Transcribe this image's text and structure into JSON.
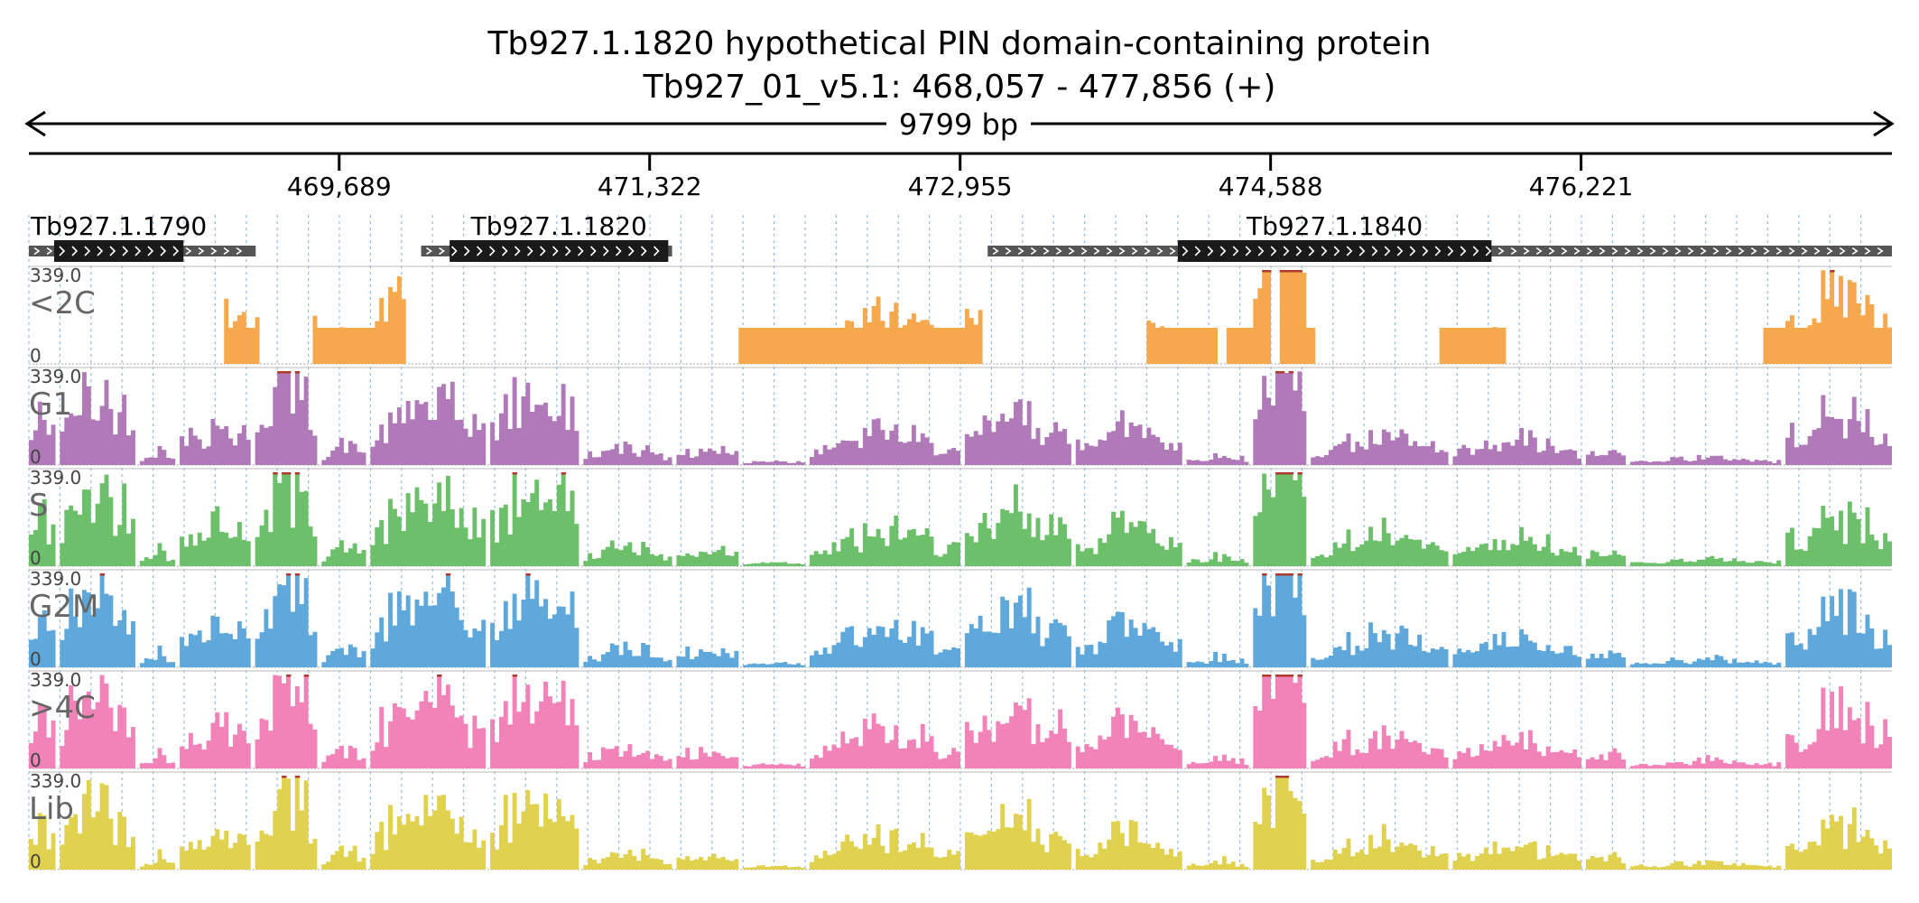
{
  "header": {
    "gene_title": "Tb927.1.1820  hypothetical PIN domain-containing protein",
    "locus": "Tb927_01_v5.1: 468,057 - 477,856 (+)",
    "span_label": "9799 bp"
  },
  "region": {
    "start": 468057,
    "end": 477856
  },
  "ruler": {
    "ticks": [
      {
        "pos": 469689,
        "label": "469,689"
      },
      {
        "pos": 471322,
        "label": "471,322"
      },
      {
        "pos": 472955,
        "label": "472,955"
      },
      {
        "pos": 474588,
        "label": "474,588"
      },
      {
        "pos": 476221,
        "label": "476,221"
      }
    ]
  },
  "genes": [
    {
      "name": "Tb927.1.1790",
      "start": 468057,
      "end": 469250,
      "cds_start": 468190,
      "cds_end": 468870,
      "strand": "+"
    },
    {
      "name": "Tb927.1.1820",
      "start": 470120,
      "end": 471440,
      "cds_start": 470270,
      "cds_end": 471420,
      "strand": "+"
    },
    {
      "name": "Tb927.1.1840",
      "start": 473100,
      "end": 477856,
      "cds_start": 474100,
      "cds_end": 475750,
      "strand": "+"
    }
  ],
  "tracks": [
    {
      "name": "<2C",
      "color": "#f6a84c",
      "max_label": "339.0",
      "min_label": "0",
      "max": 339
    },
    {
      "name": "G1",
      "color": "#b07ab8",
      "max_label": "339.0",
      "min_label": "0",
      "max": 339
    },
    {
      "name": "S",
      "color": "#6cc06a",
      "max_label": "339.0",
      "min_label": "0",
      "max": 339
    },
    {
      "name": "G2M",
      "color": "#5fa8dc",
      "max_label": "339.0",
      "min_label": "0",
      "max": 339
    },
    {
      "name": ">4C",
      "color": "#f283b8",
      "max_label": "339.0",
      "min_label": "0",
      "max": 339
    },
    {
      "name": "Lib",
      "color": "#e0d24e",
      "max_label": "339.0",
      "min_label": "0",
      "max": 339
    }
  ],
  "colors": {
    "clip": "#b23a2a",
    "guide_lines": "#7fb2e0",
    "gene_thin": "#555555",
    "gene_thick": "#1a1a1a",
    "track_label": "#666666"
  }
}
